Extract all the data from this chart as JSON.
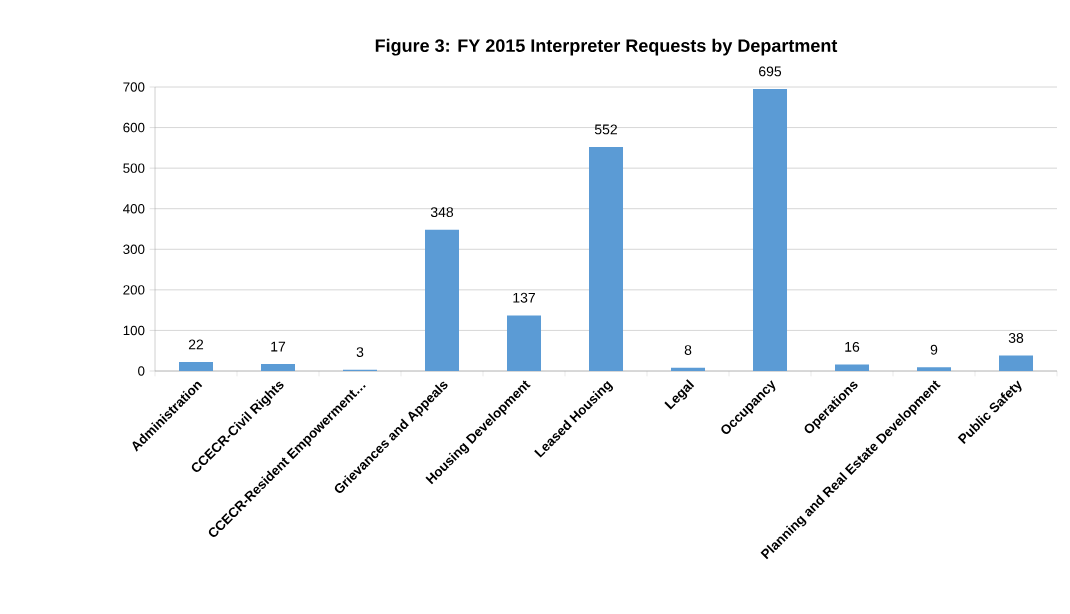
{
  "chart_data": {
    "type": "bar",
    "title": "Figure 3: FY 2015 Interpreter Requests by Department",
    "categories": [
      "Administration",
      "CCECR-Civil Rights",
      "CCECR-Resident Empowerment…",
      "Grievances and Appeals",
      "Housing Development",
      "Leased Housing",
      "Legal",
      "Occupancy",
      "Operations",
      "Planning and Real Estate Development",
      "Public Safety"
    ],
    "values": [
      22,
      17,
      3,
      348,
      137,
      552,
      8,
      695,
      16,
      9,
      38
    ],
    "color": "#5b9bd5",
    "ylim": [
      0,
      700
    ],
    "yticks": [
      0,
      100,
      200,
      300,
      400,
      500,
      600,
      700
    ],
    "grid": "y",
    "data_labels": true
  }
}
